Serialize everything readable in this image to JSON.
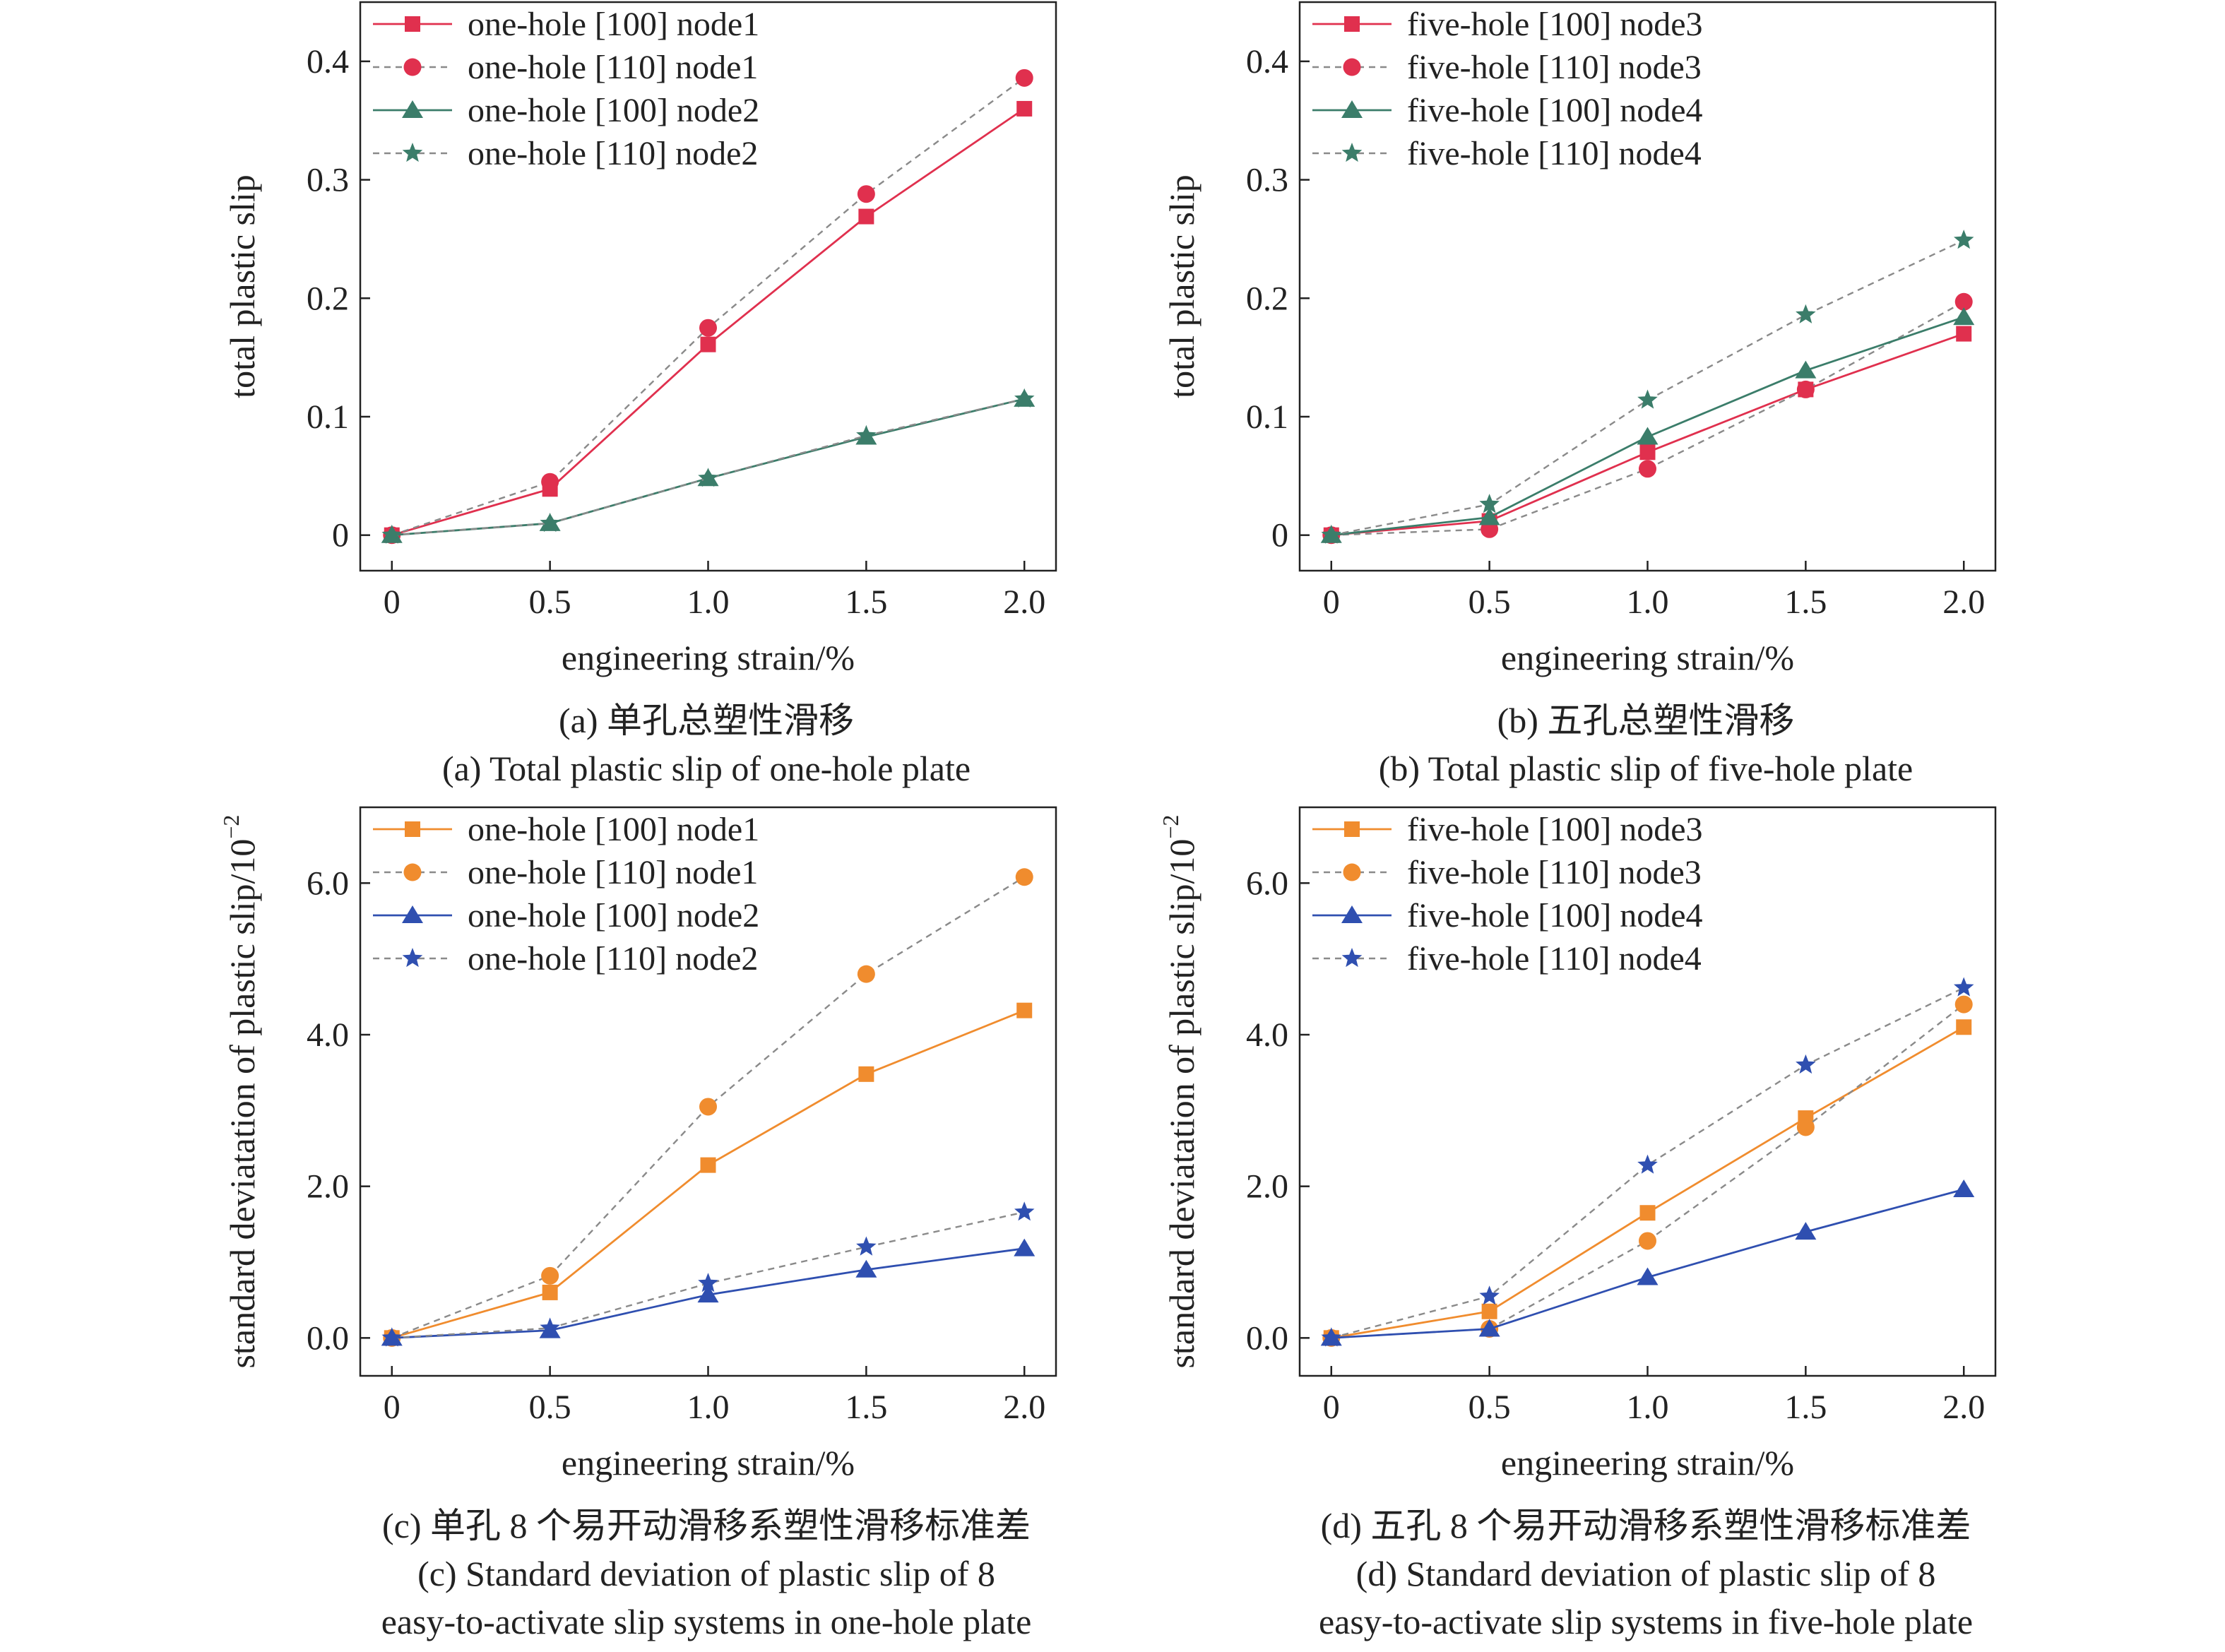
{
  "colors": {
    "red": "#e0304e",
    "green": "#3b7d6a",
    "orange": "#f08c2e",
    "blue": "#2f4fb0",
    "dash": "#8a8a8a",
    "axis": "#222222"
  },
  "captions": {
    "a": [
      "(a) 单孔总塑性滑移",
      "(a) Total plastic slip of  one-hole plate"
    ],
    "b": [
      "(b)  五孔总塑性滑移",
      "(b) Total plastic slip of five-hole plate"
    ],
    "c": [
      "(c) 单孔 8 个易开动滑移系塑性滑移标准差",
      "(c) Standard deviation of plastic slip of 8",
      "easy-to-activate  slip systems in one-hole plate"
    ],
    "d": [
      "(d) 五孔 8 个易开动滑移系塑性滑移标准差",
      "(d) Standard deviation of plastic slip of 8",
      "easy-to-activate slip systems in five-hole plate"
    ]
  },
  "chart_data": [
    {
      "id": "a",
      "type": "line",
      "xlabel": "engineering strain/%",
      "ylabel": "total plastic slip",
      "xlim": [
        -0.1,
        2.1
      ],
      "ylim": [
        -0.03,
        0.45
      ],
      "x_ticks": [
        0,
        0.5,
        1.0,
        1.5,
        2.0
      ],
      "x_tick_labels": [
        "0",
        "0.5",
        "1.0",
        "1.5",
        "2.0"
      ],
      "y_ticks": [
        0,
        0.1,
        0.2,
        0.3,
        0.4
      ],
      "y_tick_labels": [
        "0",
        "0.1",
        "0.2",
        "0.3",
        "0.4"
      ],
      "legend": "top-left",
      "x": [
        0,
        0.5,
        1.0,
        1.5,
        2.0
      ],
      "series": [
        {
          "name": "one-hole [100] node1",
          "marker": "square",
          "color": "red",
          "dashed": false,
          "values": [
            0,
            0.039,
            0.161,
            0.269,
            0.36
          ]
        },
        {
          "name": "one-hole [110] node1",
          "marker": "circle",
          "color": "red",
          "dashed": true,
          "values": [
            0,
            0.045,
            0.175,
            0.288,
            0.386
          ]
        },
        {
          "name": "one-hole [100] node2",
          "marker": "triangle",
          "color": "green",
          "dashed": false,
          "values": [
            0,
            0.01,
            0.048,
            0.083,
            0.115
          ]
        },
        {
          "name": "one-hole [110] node2",
          "marker": "star",
          "color": "green",
          "dashed": true,
          "values": [
            0,
            0.01,
            0.048,
            0.084,
            0.115
          ]
        }
      ]
    },
    {
      "id": "b",
      "type": "line",
      "xlabel": "engineering strain/%",
      "ylabel": "total plastic slip",
      "xlim": [
        -0.1,
        2.1
      ],
      "ylim": [
        -0.03,
        0.45
      ],
      "x_ticks": [
        0,
        0.5,
        1.0,
        1.5,
        2.0
      ],
      "x_tick_labels": [
        "0",
        "0.5",
        "1.0",
        "1.5",
        "2.0"
      ],
      "y_ticks": [
        0,
        0.1,
        0.2,
        0.3,
        0.4
      ],
      "y_tick_labels": [
        "0",
        "0.1",
        "0.2",
        "0.3",
        "0.4"
      ],
      "legend": "top-left",
      "x": [
        0,
        0.5,
        1.0,
        1.5,
        2.0
      ],
      "series": [
        {
          "name": "five-hole [100] node3",
          "marker": "square",
          "color": "red",
          "dashed": false,
          "values": [
            0,
            0.012,
            0.07,
            0.123,
            0.17
          ]
        },
        {
          "name": "five-hole [110] node3",
          "marker": "circle",
          "color": "red",
          "dashed": true,
          "values": [
            0,
            0.005,
            0.056,
            0.123,
            0.197
          ]
        },
        {
          "name": "five-hole [100] node4",
          "marker": "triangle",
          "color": "green",
          "dashed": false,
          "values": [
            0,
            0.015,
            0.083,
            0.139,
            0.184
          ]
        },
        {
          "name": "five-hole [110] node4",
          "marker": "star",
          "color": "green",
          "dashed": true,
          "values": [
            0,
            0.026,
            0.114,
            0.186,
            0.249
          ]
        }
      ]
    },
    {
      "id": "c",
      "type": "line",
      "xlabel": "engineering strain/%",
      "ylabel": "standard deviatation of plastic slip/10",
      "ylabel_exponent": "−2",
      "xlim": [
        -0.1,
        2.1
      ],
      "ylim": [
        -0.5,
        7.0
      ],
      "x_ticks": [
        0,
        0.5,
        1.0,
        1.5,
        2.0
      ],
      "x_tick_labels": [
        "0",
        "0.5",
        "1.0",
        "1.5",
        "2.0"
      ],
      "y_ticks": [
        0,
        2,
        4,
        6
      ],
      "y_tick_labels": [
        "0.0",
        "2.0",
        "4.0",
        "6.0"
      ],
      "legend": "top-left",
      "x": [
        0,
        0.5,
        1.0,
        1.5,
        2.0
      ],
      "series": [
        {
          "name": "one-hole [100] node1",
          "marker": "square",
          "color": "orange",
          "dashed": false,
          "values": [
            0,
            0.6,
            2.28,
            3.48,
            4.32
          ]
        },
        {
          "name": "one-hole [110] node1",
          "marker": "circle",
          "color": "orange",
          "dashed": true,
          "values": [
            0,
            0.82,
            3.05,
            4.8,
            6.08
          ]
        },
        {
          "name": "one-hole [100] node2",
          "marker": "triangle",
          "color": "blue",
          "dashed": false,
          "values": [
            0,
            0.1,
            0.57,
            0.9,
            1.18
          ]
        },
        {
          "name": "one-hole [110] node2",
          "marker": "star",
          "color": "blue",
          "dashed": true,
          "values": [
            0,
            0.13,
            0.72,
            1.2,
            1.66
          ]
        }
      ]
    },
    {
      "id": "d",
      "type": "line",
      "xlabel": "engineering strain/%",
      "ylabel": "standard deviatation of plastic slip/10",
      "ylabel_exponent": "−2",
      "xlim": [
        -0.1,
        2.1
      ],
      "ylim": [
        -0.5,
        7.0
      ],
      "x_ticks": [
        0,
        0.5,
        1.0,
        1.5,
        2.0
      ],
      "x_tick_labels": [
        "0",
        "0.5",
        "1.0",
        "1.5",
        "2.0"
      ],
      "y_ticks": [
        0,
        2,
        4,
        6
      ],
      "y_tick_labels": [
        "0.0",
        "2.0",
        "4.0",
        "6.0"
      ],
      "legend": "top-left",
      "x": [
        0,
        0.5,
        1.0,
        1.5,
        2.0
      ],
      "series": [
        {
          "name": "five-hole [100] node3",
          "marker": "square",
          "color": "orange",
          "dashed": false,
          "values": [
            0,
            0.35,
            1.65,
            2.9,
            4.1
          ]
        },
        {
          "name": "five-hole [110] node3",
          "marker": "circle",
          "color": "orange",
          "dashed": true,
          "values": [
            0,
            0.12,
            1.28,
            2.78,
            4.4
          ]
        },
        {
          "name": "five-hole [100] node4",
          "marker": "triangle",
          "color": "blue",
          "dashed": false,
          "values": [
            0,
            0.12,
            0.8,
            1.4,
            1.96
          ]
        },
        {
          "name": "five-hole [110] node4",
          "marker": "star",
          "color": "blue",
          "dashed": true,
          "values": [
            0,
            0.55,
            2.28,
            3.6,
            4.62
          ]
        }
      ]
    }
  ]
}
